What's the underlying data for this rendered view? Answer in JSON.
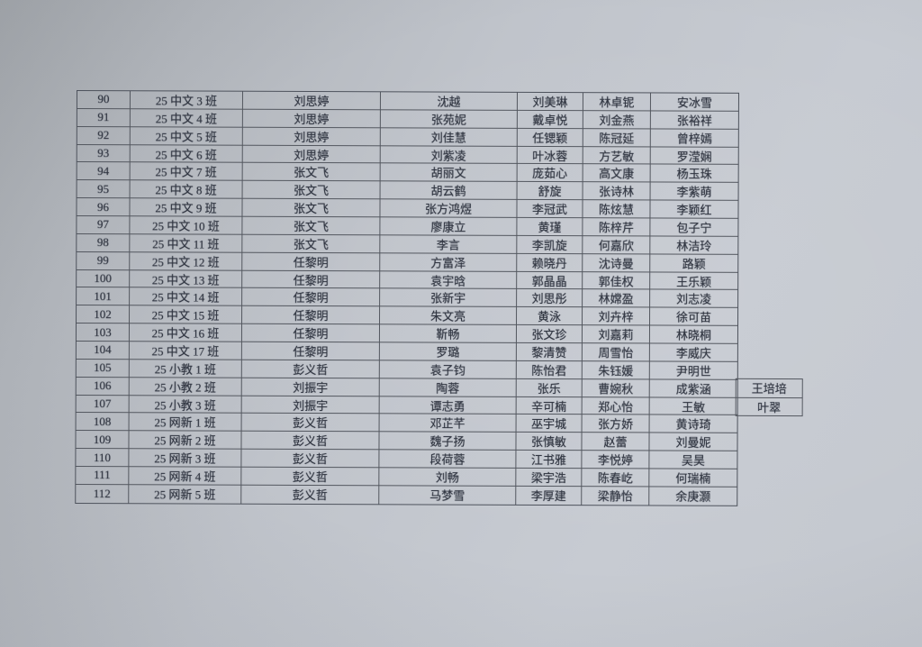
{
  "table": {
    "rows": [
      {
        "cells": [
          "90",
          "25 中文 3 班",
          "刘思婷",
          "沈越",
          "刘美琳",
          "林卓铌",
          "安冰雪"
        ]
      },
      {
        "cells": [
          "91",
          "25 中文 4 班",
          "刘思婷",
          "张苑妮",
          "戴卓悦",
          "刘金燕",
          "张裕祥"
        ]
      },
      {
        "cells": [
          "92",
          "25 中文 5 班",
          "刘思婷",
          "刘佳慧",
          "任锶颖",
          "陈冠延",
          "曾梓嫣"
        ]
      },
      {
        "cells": [
          "93",
          "25 中文 6 班",
          "刘思婷",
          "刘紫凌",
          "叶冰蓉",
          "方艺敏",
          "罗滢娴"
        ]
      },
      {
        "cells": [
          "94",
          "25 中文 7 班",
          "张文飞",
          "胡丽文",
          "庞茹心",
          "高文康",
          "杨玉珠"
        ]
      },
      {
        "cells": [
          "95",
          "25 中文 8 班",
          "张文飞",
          "胡云鹤",
          "舒旋",
          "张诗林",
          "李紫萌"
        ]
      },
      {
        "cells": [
          "96",
          "25 中文 9 班",
          "张文飞",
          "张方鸿煜",
          "李冠武",
          "陈炫慧",
          "李颖红"
        ]
      },
      {
        "cells": [
          "97",
          "25 中文 10 班",
          "张文飞",
          "廖康立",
          "黄瑾",
          "陈梓芹",
          "包子宁"
        ]
      },
      {
        "cells": [
          "98",
          "25 中文 11 班",
          "张文飞",
          "李言",
          "李凯旋",
          "何嘉欣",
          "林洁玲"
        ]
      },
      {
        "cells": [
          "99",
          "25 中文 12 班",
          "任黎明",
          "方富泽",
          "赖晓丹",
          "沈诗曼",
          "路颖"
        ]
      },
      {
        "cells": [
          "100",
          "25 中文 13 班",
          "任黎明",
          "袁宇晗",
          "郭晶晶",
          "郭佳权",
          "王乐颖"
        ]
      },
      {
        "cells": [
          "101",
          "25 中文 14 班",
          "任黎明",
          "张新宇",
          "刘思彤",
          "林嫦盈",
          "刘志凌"
        ]
      },
      {
        "cells": [
          "102",
          "25 中文 15 班",
          "任黎明",
          "朱文亮",
          "黄泳",
          "刘卉梓",
          "徐可苗"
        ]
      },
      {
        "cells": [
          "103",
          "25 中文 16 班",
          "任黎明",
          "靳畅",
          "张文珍",
          "刘嘉莉",
          "林晓桐"
        ]
      },
      {
        "cells": [
          "104",
          "25 中文 17 班",
          "任黎明",
          "罗璐",
          "黎清赞",
          "周雪怡",
          "李威庆"
        ]
      },
      {
        "cells": [
          "105",
          "25 小教 1 班",
          "彭义哲",
          "袁子钧",
          "陈怡君",
          "朱钰媛",
          "尹明世"
        ]
      },
      {
        "cells": [
          "106",
          "25 小教 2 班",
          "刘振宇",
          "陶蓉",
          "张乐",
          "曹婉秋",
          "成紫涵"
        ],
        "extra": "王培培"
      },
      {
        "cells": [
          "107",
          "25 小教 3 班",
          "刘振宇",
          "谭志勇",
          "辛可楠",
          "郑心怡",
          "王敏"
        ],
        "extra": "叶翠"
      },
      {
        "cells": [
          "108",
          "25 网新 1 班",
          "彭义哲",
          "邓芷芊",
          "巫宇城",
          "张方娇",
          "黄诗琦"
        ]
      },
      {
        "cells": [
          "109",
          "25 网新 2 班",
          "彭义哲",
          "魏子扬",
          "张慎敏",
          "赵蕾",
          "刘曼妮"
        ]
      },
      {
        "cells": [
          "110",
          "25 网新 3 班",
          "彭义哲",
          "段荷蓉",
          "江书雅",
          "李悦婷",
          "吴昊"
        ]
      },
      {
        "cells": [
          "111",
          "25 网新 4 班",
          "彭义哲",
          "刘畅",
          "梁宇浩",
          "陈春屹",
          "何瑞楠"
        ]
      },
      {
        "cells": [
          "112",
          "25 网新 5 班",
          "彭义哲",
          "马梦雪",
          "李厚建",
          "梁静怡",
          "余庚灏"
        ]
      }
    ]
  }
}
